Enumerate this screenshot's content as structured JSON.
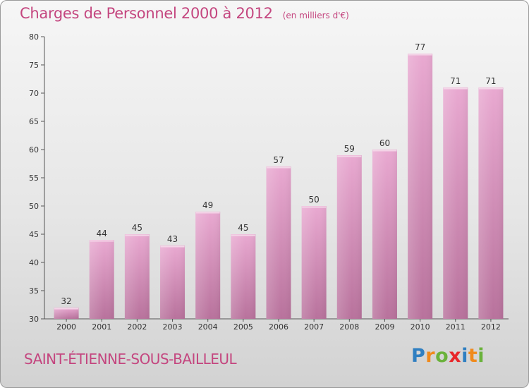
{
  "title": "Charges de Personnel 2000 à 2012",
  "subtitle": "(en milliers d'€)",
  "footer": {
    "commune": "SAINT-ÉTIENNE-SOUS-BAILLEUL"
  },
  "logo": {
    "text": "Proxiti",
    "letters": [
      "P",
      "r",
      "o",
      "x",
      "i",
      "t",
      "i"
    ],
    "colors": [
      "#2f7fc1",
      "#f08a1c",
      "#6ab23b",
      "#e8262a",
      "#2f7fc1",
      "#f08a1c",
      "#6ab23b"
    ]
  },
  "colors": {
    "bar": "#d98fbe",
    "accent": "#c4467f"
  },
  "chart_data": {
    "type": "bar",
    "categories": [
      "2000",
      "2001",
      "2002",
      "2003",
      "2004",
      "2005",
      "2006",
      "2007",
      "2008",
      "2009",
      "2010",
      "2011",
      "2012"
    ],
    "values": [
      32,
      44,
      45,
      43,
      49,
      45,
      57,
      50,
      59,
      60,
      77,
      71,
      71
    ],
    "data_labels": [
      "32",
      "44",
      "45",
      "43",
      "49",
      "45",
      "57",
      "50",
      "59",
      "60",
      "77",
      "71",
      "71"
    ],
    "title": "Charges de Personnel 2000 à 2012",
    "subtitle": "(en milliers d'€)",
    "ylim": [
      30,
      80
    ],
    "yticks": [
      30,
      35,
      40,
      45,
      50,
      55,
      60,
      65,
      70,
      75,
      80
    ],
    "grid": false,
    "legend": "none"
  }
}
